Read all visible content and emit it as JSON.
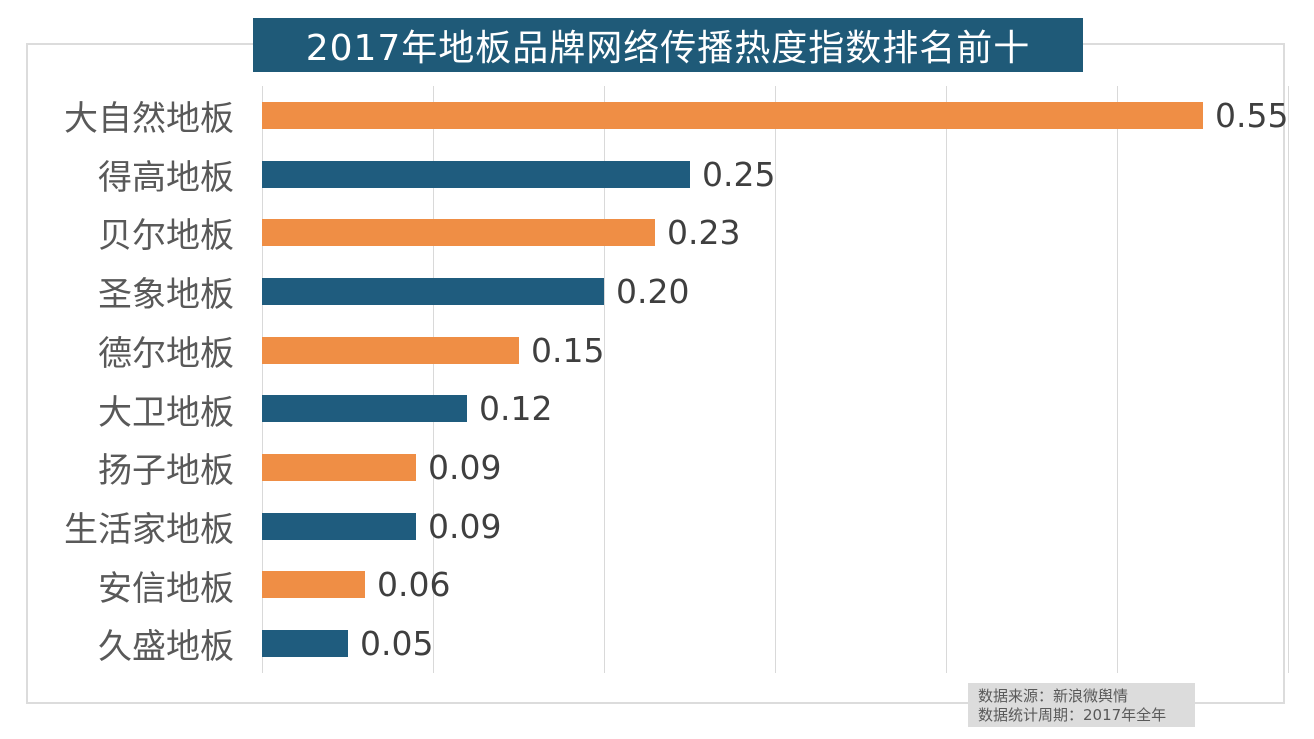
{
  "title": {
    "text": "2017年地板品牌网络传播热度指数排名前十",
    "background_color": "#1f5a78",
    "text_color": "#ffffff"
  },
  "chart_data": {
    "type": "bar",
    "orientation": "horizontal",
    "title": "2017年地板品牌网络传播热度指数排名前十",
    "categories": [
      "大自然地板",
      "得高地板",
      "贝尔地板",
      "圣象地板",
      "德尔地板",
      "大卫地板",
      "扬子地板",
      "生活家地板",
      "安信地板",
      "久盛地板"
    ],
    "values": [
      0.55,
      0.25,
      0.23,
      0.2,
      0.15,
      0.12,
      0.09,
      0.09,
      0.06,
      0.05
    ],
    "value_labels": [
      "0.55",
      "0.25",
      "0.23",
      "0.20",
      "0.15",
      "0.12",
      "0.09",
      "0.09",
      "0.06",
      "0.05"
    ],
    "xlim": [
      0,
      0.6
    ],
    "gridline_step": 0.1,
    "grid": true,
    "legend": false,
    "bar_colors_alternate": [
      "#ef8e45",
      "#1f5c7e"
    ]
  },
  "footer": {
    "line1": "数据来源：新浪微舆情",
    "line2": "数据统计周期：2017年全年"
  },
  "colors": {
    "orange_bar": "#ef8e45",
    "blue_bar": "#1f5c7e",
    "title_background": "#1f5a78",
    "gridline": "#d9d9d9",
    "category_label": "#595959",
    "value_label": "#3f3f3f",
    "footer_background": "#dcdcdc"
  }
}
